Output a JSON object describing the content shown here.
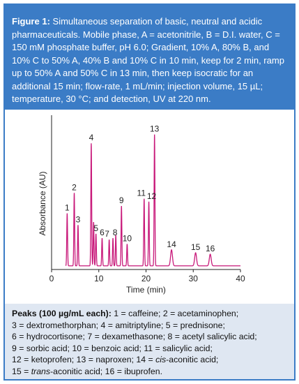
{
  "caption": {
    "label": "Figure 1:",
    "text": "Simultaneous separation of basic, neutral and acidic pharmaceuticals. Mobile phase, A = acetonitrile, B = D.I. water, C = 150 mM phosphate buffer, pH 6.0; Gradient, 10% A, 80% B, and 10% C to 50% A, 40% B and 10% C in 10 min, keep for 2 min, ramp up to 50% A and 50% C in 13 min, then keep isocratic for an additional 15 min; flow-rate, 1 mL/min; injection volume, 15 µL; temperature, 30 °C; and detection, UV at 220 nm."
  },
  "colors": {
    "frame": "#3b7cc6",
    "trace": "#c8197a",
    "peaks_bg": "#dfe7f2"
  },
  "chart_data": {
    "type": "line",
    "xlabel": "Time (min)",
    "ylabel": "Absorbance (AU)",
    "xlim": [
      0,
      40
    ],
    "xticks": [
      0,
      10,
      20,
      30,
      40
    ],
    "y_ticks_shown": false,
    "peaks": [
      {
        "label": "1",
        "time": 3.3,
        "height": 0.36
      },
      {
        "label": "2",
        "time": 4.8,
        "height": 0.5
      },
      {
        "label": "3",
        "time": 5.6,
        "height": 0.28
      },
      {
        "label": "4",
        "time": 8.4,
        "height": 0.84
      },
      {
        "label": "",
        "time": 8.9,
        "height": 0.3
      },
      {
        "label": "5",
        "time": 9.4,
        "height": 0.22
      },
      {
        "label": "6",
        "time": 10.7,
        "height": 0.19
      },
      {
        "label": "7",
        "time": 12.2,
        "height": 0.18
      },
      {
        "label": "8",
        "time": 13.0,
        "height": 0.19
      },
      {
        "label": "",
        "time": 13.6,
        "height": 0.21
      },
      {
        "label": "9",
        "time": 14.8,
        "height": 0.41
      },
      {
        "label": "10",
        "time": 16.0,
        "height": 0.15
      },
      {
        "label": "11",
        "time": 19.6,
        "height": 0.46
      },
      {
        "label": "12",
        "time": 20.6,
        "height": 0.44
      },
      {
        "label": "13",
        "time": 21.8,
        "height": 0.9
      },
      {
        "label": "14",
        "time": 25.4,
        "height": 0.11
      },
      {
        "label": "15",
        "time": 30.5,
        "height": 0.09
      },
      {
        "label": "16",
        "time": 33.6,
        "height": 0.08
      }
    ]
  },
  "peaks_legend": {
    "title": "Peaks (100 µg/mL each):",
    "line1": " 1 = caffeine; 2 = acetaminophen;",
    "line2": "3 = dextromethorphan; 4 = amitriptyline; 5 = prednisone;",
    "line3": "6 = hydrocortisone; 7 = dexamethasone; 8 = acetyl salicylic acid;",
    "line4": "9 = sorbic acid; 10 = benzoic acid; 11 = salicylic acid;",
    "line5": "12 = ketoprofen; 13 = naproxen; 14 = ",
    "line5_italic": "cis",
    "line5_end": "-aconitic acid;",
    "line6_start": "15 = ",
    "line6_italic": "trans",
    "line6_end": "-aconitic acid; 16 = ibuprofen."
  }
}
